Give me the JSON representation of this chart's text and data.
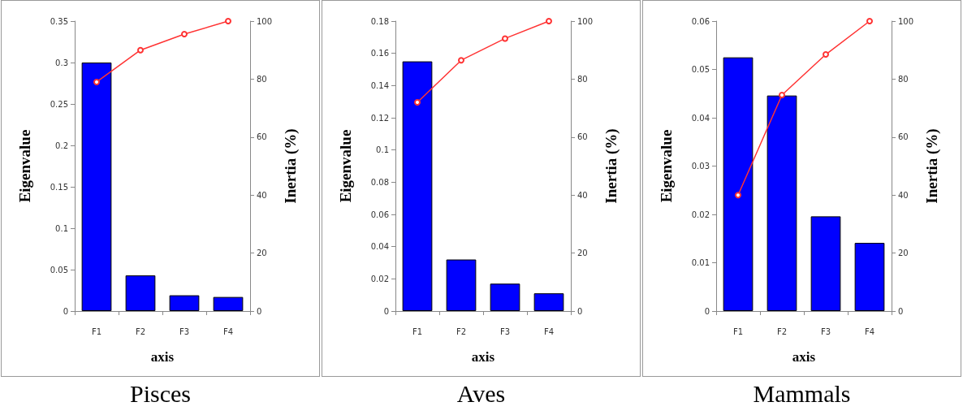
{
  "chart_data": [
    {
      "type": "bar",
      "title": "Pisces",
      "xlabel": "axis",
      "ylabel": "Eigenvalue",
      "y2label": "Inertia (%)",
      "categories": [
        "F1",
        "F2",
        "F3",
        "F4"
      ],
      "series": [
        {
          "color": "#0000ff",
          "values": [
            0.3,
            0.043,
            0.019,
            0.017
          ]
        },
        {
          "type": "line",
          "axis": "y2",
          "color": "#ff3333",
          "values": [
            79,
            90,
            95.5,
            100
          ]
        }
      ],
      "ylim": [
        0,
        0.35
      ],
      "yticks": [
        0,
        0.05,
        0.1,
        0.15,
        0.2,
        0.25,
        0.3,
        0.35
      ],
      "y2lim": [
        0,
        100
      ],
      "y2ticks": [
        0,
        20,
        40,
        60,
        80,
        100
      ],
      "marker": "circle",
      "grid": false
    },
    {
      "type": "bar",
      "title": "Aves",
      "xlabel": "axis",
      "ylabel": "Eigenvalue",
      "y2label": "Inertia (%)",
      "categories": [
        "F1",
        "F2",
        "F3",
        "F4"
      ],
      "series": [
        {
          "color": "#0000ff",
          "values": [
            0.155,
            0.032,
            0.017,
            0.011
          ]
        },
        {
          "type": "line",
          "axis": "y2",
          "color": "#ff3333",
          "values": [
            72,
            86.5,
            94,
            100
          ]
        }
      ],
      "ylim": [
        0,
        0.18
      ],
      "yticks": [
        0,
        0.02,
        0.04,
        0.06,
        0.08,
        0.1,
        0.12,
        0.14,
        0.16,
        0.18
      ],
      "y2lim": [
        0,
        100
      ],
      "y2ticks": [
        0,
        20,
        40,
        60,
        80,
        100
      ],
      "marker": "circle",
      "grid": false
    },
    {
      "type": "bar",
      "title": "Mammals",
      "xlabel": "axis",
      "ylabel": "Eigenvalue",
      "y2label": "Inertia (%)",
      "categories": [
        "F1",
        "F2",
        "F3",
        "F4"
      ],
      "series": [
        {
          "color": "#0000ff",
          "values": [
            0.0525,
            0.0446,
            0.0196,
            0.0141
          ]
        },
        {
          "type": "line",
          "axis": "y2",
          "color": "#ff3333",
          "values": [
            40,
            74.5,
            88.5,
            100
          ]
        }
      ],
      "ylim": [
        0,
        0.06
      ],
      "yticks": [
        0,
        0.01,
        0.02,
        0.03,
        0.04,
        0.05,
        0.06
      ],
      "y2lim": [
        0,
        100
      ],
      "y2ticks": [
        0,
        20,
        40,
        60,
        80,
        100
      ],
      "marker": "circle",
      "grid": false
    }
  ]
}
